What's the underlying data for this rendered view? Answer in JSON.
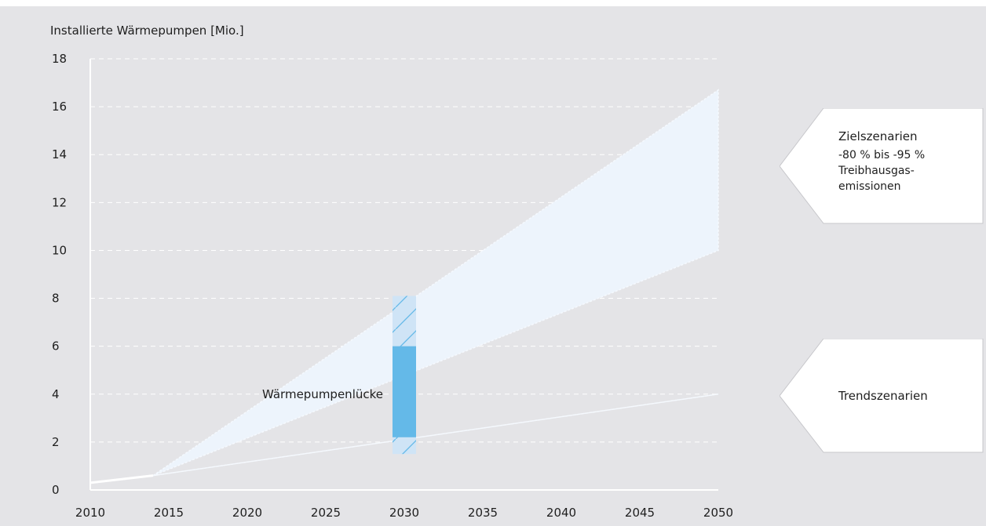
{
  "chart_data": {
    "type": "area",
    "ylabel": "Installierte Wärmepumpen [Mio.]",
    "xlabel": "",
    "xlim": [
      2010,
      2050
    ],
    "ylim": [
      0,
      18
    ],
    "x_ticks": [
      2010,
      2015,
      2020,
      2025,
      2030,
      2035,
      2040,
      2045,
      2050
    ],
    "y_ticks": [
      0,
      2,
      4,
      6,
      8,
      10,
      12,
      14,
      16,
      18
    ],
    "grid": "horizontal dashed",
    "history": [
      {
        "x": 2010,
        "y": 0.3
      },
      {
        "x": 2014,
        "y": 0.6
      }
    ],
    "series": [
      {
        "name": "Zielszenarien",
        "upper": [
          {
            "x": 2014,
            "y": 0.6
          },
          {
            "x": 2050,
            "y": 16.7
          }
        ],
        "lower": [
          {
            "x": 2014,
            "y": 0.6
          },
          {
            "x": 2050,
            "y": 10.0
          }
        ]
      },
      {
        "name": "Trendszenarien",
        "upper": [
          {
            "x": 2014,
            "y": 0.6
          },
          {
            "x": 2050,
            "y": 4.0
          }
        ],
        "lower": [
          {
            "x": 2014,
            "y": 0.6
          },
          {
            "x": 2050,
            "y": 4.0
          }
        ]
      }
    ],
    "gap": {
      "label": "Wärmepumpenlücke",
      "x": 2030,
      "solid_range": [
        2.2,
        6.0
      ],
      "hatched_range": [
        1.5,
        8.1
      ]
    },
    "colors": {
      "band": "#edf4fc",
      "gap_solid": "#64b9e8",
      "gap_hatched": "#cfe4f6",
      "hatch_line": "#64b9e8",
      "grid": "#ffffff"
    }
  },
  "callouts": {
    "ziel": {
      "title": "Zielszenarien",
      "subtitle": "-80 % bis -95 %\nTreibhausgas-\nemissionen"
    },
    "trend": {
      "title": "Trendszenarien"
    }
  }
}
